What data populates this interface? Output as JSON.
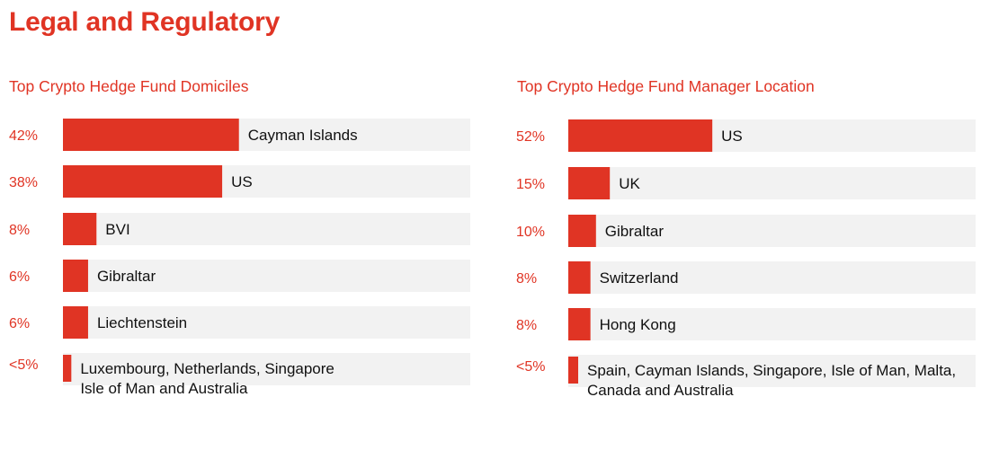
{
  "page": {
    "title": "Legal and Regulatory",
    "accent_color": "#e03424",
    "track_color": "#f2f2f2"
  },
  "chart_data": [
    {
      "type": "bar",
      "orientation": "horizontal",
      "title": "Top Crypto Hedge Fund Domiciles",
      "categories": [
        "Cayman Islands",
        "US",
        "BVI",
        "Gibraltar",
        "Liechtenstein",
        "Luxembourg, Netherlands, Singapore\nIsle of Man and Australia"
      ],
      "value_labels": [
        "42%",
        "38%",
        "8%",
        "6%",
        "6%",
        "<5%"
      ],
      "values": [
        42,
        38,
        8,
        6,
        6,
        2
      ],
      "xlim": [
        0,
        100
      ]
    },
    {
      "type": "bar",
      "orientation": "horizontal",
      "title": "Top Crypto Hedge Fund Manager Location",
      "categories": [
        "US",
        "UK",
        "Gibraltar",
        "Switzerland",
        "Hong Kong",
        "Spain, Cayman Islands, Singapore, Isle of Man, Malta,\nCanada and Australia"
      ],
      "value_labels": [
        "52%",
        "15%",
        "10%",
        "8%",
        "8%",
        "<5%"
      ],
      "values": [
        52,
        15,
        10,
        8,
        8,
        2
      ],
      "xlim": [
        0,
        100
      ]
    }
  ]
}
